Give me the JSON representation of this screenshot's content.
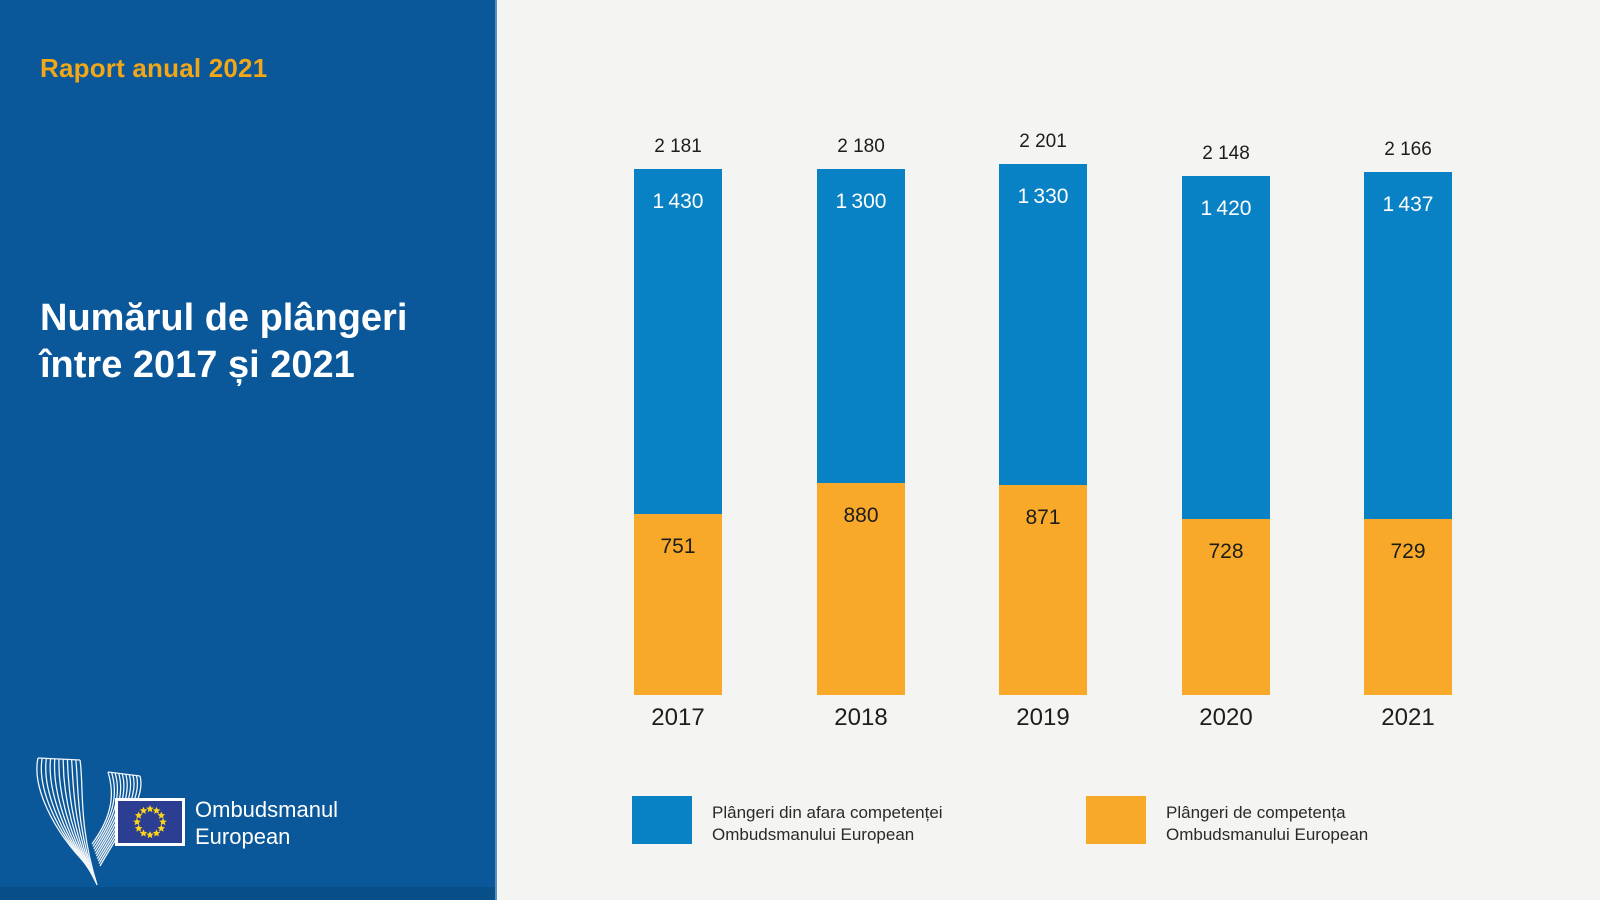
{
  "report_label": "Raport anual 2021",
  "panel": {
    "title_line1": "Numărul de plângeri",
    "title_line2": "între 2017 și 2021"
  },
  "logo": {
    "org_line1": "Ombudsmanul",
    "org_line2": "European"
  },
  "legend": [
    {
      "line1": "Plângeri din afara competenței",
      "line2": "Ombudsmanului European",
      "color": "#0882c4"
    },
    {
      "line1": "Plângeri de competența",
      "line2": "Ombudsmanului European",
      "color": "#f8a929"
    }
  ],
  "colors": {
    "panel_blue": "#0a5799",
    "bar_blue": "#0882c4",
    "bar_orange": "#f8a929",
    "accent_orange": "#f1a717",
    "background": "#f4f4f3",
    "flag_blue": "#2b3e92",
    "star_yellow": "#ffd617",
    "text_dark": "#1d1d1b",
    "text_white": "#ffffff"
  },
  "chart_data": {
    "type": "bar",
    "stacked": true,
    "title": "Numărul de plângeri între 2017 și 2021",
    "categories": [
      "2017",
      "2018",
      "2019",
      "2020",
      "2021"
    ],
    "series": [
      {
        "name": "Plângeri din afara competenței Ombudsmanului European",
        "color": "#0882c4",
        "values": [
          1430,
          1300,
          1330,
          1420,
          1437
        ],
        "labels": [
          "1 430",
          "1 300",
          "1 330",
          "1 420",
          "1 437"
        ]
      },
      {
        "name": "Plângeri de competența Ombudsmanului European",
        "color": "#f8a929",
        "values": [
          751,
          880,
          871,
          728,
          729
        ],
        "labels": [
          "751",
          "880",
          "871",
          "728",
          "729"
        ]
      }
    ],
    "totals": [
      2181,
      2180,
      2201,
      2148,
      2166
    ],
    "total_labels": [
      "2 181",
      "2 180",
      "2 201",
      "2 148",
      "2 166"
    ],
    "xlabel": "",
    "ylabel": "",
    "ylim": [
      0,
      2300
    ],
    "grid": false,
    "legend_position": "bottom"
  }
}
